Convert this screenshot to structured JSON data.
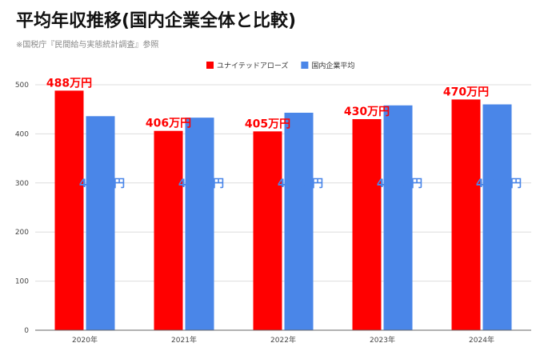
{
  "title": "平均年収推移(国内企業全体と比較)",
  "subtitle": "※国税庁『民間給与実態統計調査』参照",
  "colors": {
    "company": "#ff0000",
    "national": "#4a86e8",
    "grid": "#dddddd",
    "axis": "#666666"
  },
  "chart_data": {
    "type": "bar",
    "title": "平均年収推移(国内企業全体と比較)",
    "categories": [
      "2020年",
      "2021年",
      "2022年",
      "2023年",
      "2024年"
    ],
    "series": [
      {
        "name": "ユナイテッドアローズ",
        "values": [
          488,
          406,
          405,
          430,
          470
        ],
        "labels": [
          "488万円",
          "406万円",
          "405万円",
          "430万円",
          "470万円"
        ]
      },
      {
        "name": "国内企業平均",
        "values": [
          436,
          433,
          443,
          458,
          460
        ],
        "labels": [
          "436万円",
          "433万円",
          "443万円",
          "458万円",
          "460万円"
        ]
      }
    ],
    "yticks": [
      "0",
      "100",
      "200",
      "300",
      "400",
      "500"
    ],
    "ylim": [
      0,
      500
    ],
    "grid": true,
    "legend": "top-center"
  }
}
